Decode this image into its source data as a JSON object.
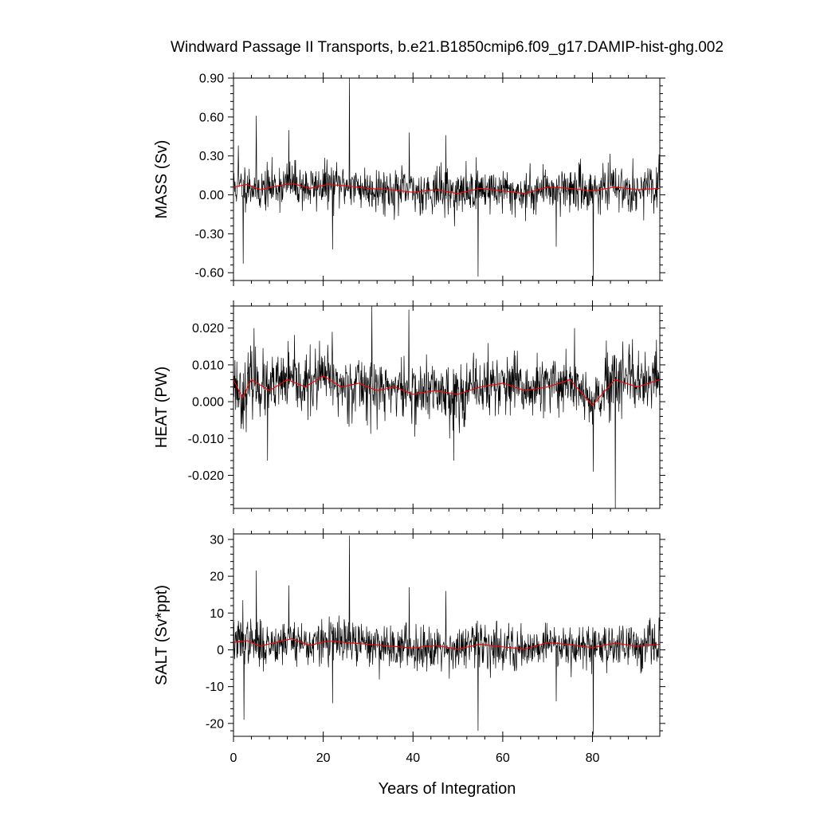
{
  "title": "Windward Passage II Transports, b.e21.B1850cmip6.f09_g17.DAMIP-hist-ghg.002",
  "xlabel": "Years of Integration",
  "colors": {
    "raw": "#000000",
    "smooth": "#ff0000",
    "frame": "#000000"
  },
  "chart_data": [
    {
      "type": "line",
      "ylabel": "MASS (Sv)",
      "xlim": [
        0,
        95
      ],
      "ylim": [
        -0.66,
        0.9
      ],
      "xticks": [
        0,
        20,
        40,
        60,
        80
      ],
      "xtick_labels": [
        "0",
        "20",
        "40",
        "60",
        "80"
      ],
      "yticks": [
        -0.6,
        -0.3,
        0.0,
        0.3,
        0.6,
        0.9
      ],
      "ytick_labels": [
        "-0.60",
        "-0.30",
        "0.00",
        "0.30",
        "0.60",
        "0.90"
      ],
      "series": [
        {
          "role": "monthly",
          "color": "#000000",
          "baseline": 0.04,
          "noise": 0.085,
          "seed": 11,
          "spikes": [
            [
              1.1,
              0.38
            ],
            [
              2.2,
              -0.53
            ],
            [
              5.1,
              0.61
            ],
            [
              12.3,
              0.5
            ],
            [
              22.1,
              -0.42
            ],
            [
              25.8,
              0.9
            ],
            [
              39.2,
              0.48
            ],
            [
              47.3,
              0.46
            ],
            [
              54.5,
              -0.63
            ],
            [
              71.9,
              -0.4
            ],
            [
              80.2,
              -0.66
            ]
          ]
        },
        {
          "role": "smoothed",
          "color": "#ff0000",
          "x": [
            0,
            3,
            6,
            10,
            13,
            17,
            21,
            25,
            30,
            35,
            40,
            45,
            50,
            55,
            60,
            65,
            70,
            75,
            80,
            85,
            90,
            95
          ],
          "y": [
            0.06,
            0.08,
            0.04,
            0.07,
            0.09,
            0.05,
            0.08,
            0.07,
            0.05,
            0.04,
            0.02,
            0.04,
            0.01,
            0.05,
            0.03,
            0.01,
            0.06,
            0.05,
            0.03,
            0.06,
            0.04,
            0.05
          ]
        }
      ]
    },
    {
      "type": "line",
      "ylabel": "HEAT (PW)",
      "xlim": [
        0,
        95
      ],
      "ylim": [
        -0.029,
        0.026
      ],
      "xticks": [
        0,
        20,
        40,
        60,
        80
      ],
      "xtick_labels": [
        "0",
        "20",
        "40",
        "60",
        "80"
      ],
      "yticks": [
        -0.02,
        -0.01,
        0.0,
        0.01,
        0.02
      ],
      "ytick_labels": [
        "-0.020",
        "-0.010",
        "0.000",
        "0.010",
        "0.020"
      ],
      "series": [
        {
          "role": "monthly",
          "color": "#000000",
          "baseline": 0.004,
          "noise": 0.0042,
          "seed": 23,
          "spikes": [
            [
              4.6,
              0.02
            ],
            [
              7.6,
              -0.016
            ],
            [
              22.0,
              0.019
            ],
            [
              30.8,
              0.026
            ],
            [
              39.1,
              0.025
            ],
            [
              49.1,
              -0.016
            ],
            [
              76.0,
              0.02
            ],
            [
              80.2,
              -0.019
            ],
            [
              85.1,
              -0.029
            ],
            [
              88.9,
              0.017
            ]
          ]
        },
        {
          "role": "smoothed",
          "color": "#ff0000",
          "x": [
            0,
            2,
            4,
            8,
            12,
            16,
            20,
            24,
            28,
            32,
            36,
            40,
            45,
            50,
            55,
            60,
            65,
            70,
            75,
            80,
            85,
            90,
            95
          ],
          "y": [
            0.006,
            0.001,
            0.006,
            0.003,
            0.006,
            0.004,
            0.007,
            0.004,
            0.005,
            0.003,
            0.004,
            0.002,
            0.003,
            0.002,
            0.004,
            0.005,
            0.003,
            0.004,
            0.006,
            -0.001,
            0.006,
            0.004,
            0.006
          ]
        }
      ]
    },
    {
      "type": "line",
      "ylabel": "SALT (Sv*ppt)",
      "xlim": [
        0,
        95
      ],
      "ylim": [
        -23.5,
        31.5
      ],
      "xticks": [
        0,
        20,
        40,
        60,
        80
      ],
      "xtick_labels": [
        "0",
        "20",
        "40",
        "60",
        "80"
      ],
      "yticks": [
        -20,
        -10,
        0,
        10,
        20,
        30
      ],
      "ytick_labels": [
        "-20",
        "-10",
        "0",
        "10",
        "20",
        "30"
      ],
      "series": [
        {
          "role": "monthly",
          "color": "#000000",
          "baseline": 1.5,
          "noise": 3.0,
          "seed": 37,
          "spikes": [
            [
              2.1,
              13.5
            ],
            [
              2.3,
              -19.0
            ],
            [
              5.1,
              21.5
            ],
            [
              12.3,
              17.5
            ],
            [
              22.1,
              -14.5
            ],
            [
              25.8,
              31.0
            ],
            [
              39.2,
              17.0
            ],
            [
              47.3,
              16.0
            ],
            [
              54.5,
              -22.0
            ],
            [
              71.9,
              -14.0
            ],
            [
              80.2,
              -23.0
            ]
          ]
        },
        {
          "role": "smoothed",
          "color": "#ff0000",
          "x": [
            0,
            3,
            6,
            10,
            13,
            17,
            21,
            25,
            30,
            35,
            40,
            45,
            50,
            55,
            60,
            65,
            70,
            75,
            80,
            85,
            90,
            95
          ],
          "y": [
            2.0,
            2.5,
            1.0,
            2.2,
            3.0,
            1.2,
            2.4,
            2.0,
            1.5,
            1.0,
            0.5,
            1.2,
            0.2,
            1.5,
            0.8,
            0.2,
            2.0,
            1.4,
            0.6,
            1.8,
            1.0,
            1.5
          ]
        }
      ]
    }
  ]
}
